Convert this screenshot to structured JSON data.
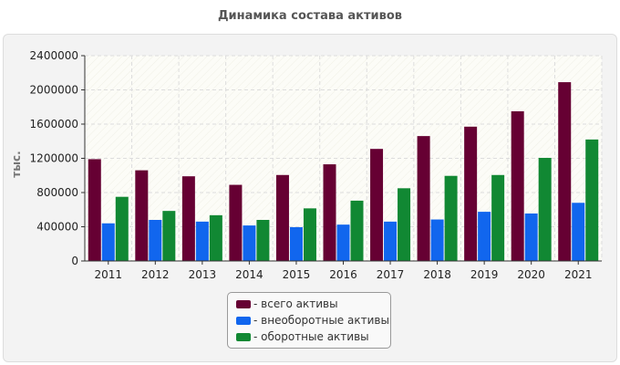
{
  "chart_data": {
    "type": "bar",
    "title": "Динамика состава активов",
    "ylabel": "тыс.",
    "xlabel": "",
    "categories": [
      "2011",
      "2012",
      "2013",
      "2014",
      "2015",
      "2016",
      "2017",
      "2018",
      "2019",
      "2020",
      "2021"
    ],
    "ylim": [
      0,
      2400000
    ],
    "yticks": [
      0,
      400000,
      800000,
      1200000,
      1600000,
      2000000,
      2400000
    ],
    "grid": true,
    "legend_position": "bottom",
    "series": [
      {
        "name": "всего активы",
        "legend_label": "- всего активы",
        "color": "#660033",
        "values": [
          1190000,
          1060000,
          990000,
          890000,
          1005000,
          1130000,
          1310000,
          1460000,
          1570000,
          1750000,
          2090000
        ]
      },
      {
        "name": "внеоборотные активы",
        "legend_label": "- внеоборотные активы",
        "color": "#1166ee",
        "values": [
          440000,
          480000,
          460000,
          415000,
          395000,
          425000,
          460000,
          485000,
          575000,
          555000,
          680000
        ]
      },
      {
        "name": "оборотные активы",
        "legend_label": "- оборотные активы",
        "color": "#118833",
        "values": [
          750000,
          585000,
          535000,
          480000,
          615000,
          705000,
          850000,
          995000,
          1005000,
          1205000,
          1420000
        ]
      }
    ]
  }
}
